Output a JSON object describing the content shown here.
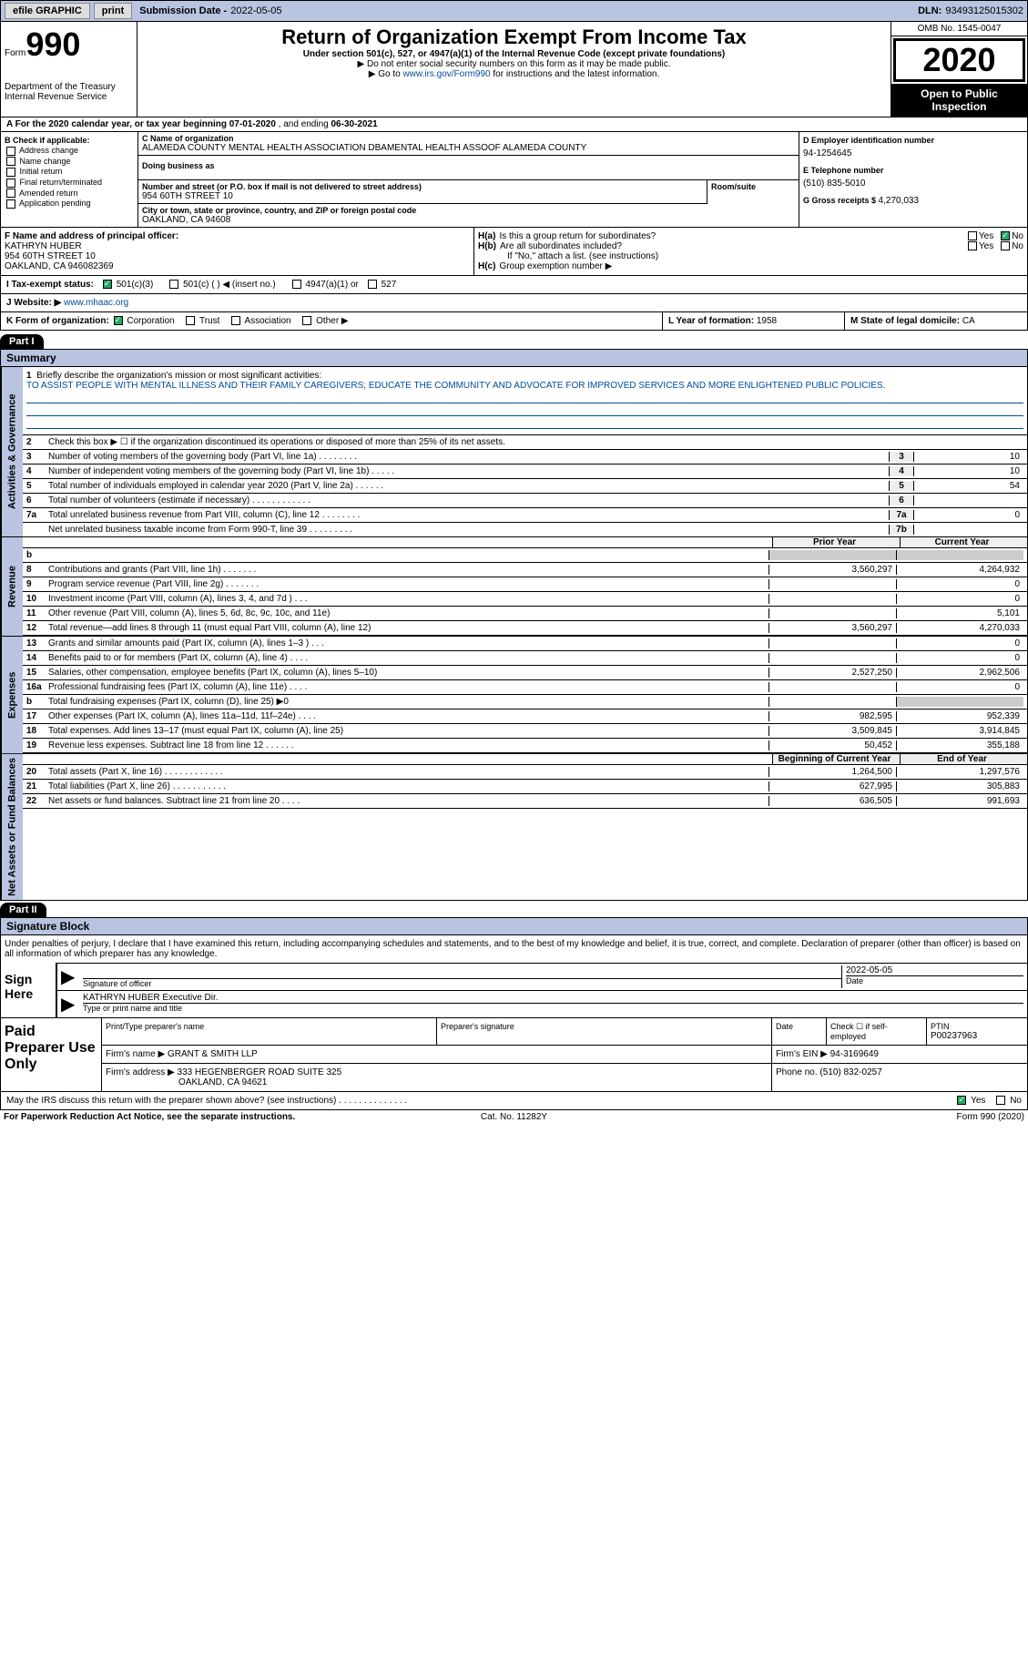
{
  "topbar": {
    "efile_label": "efile GRAPHIC",
    "print_label": "print",
    "sub_date_label": "Submission Date - ",
    "sub_date": "2022-05-05",
    "dln_label": "DLN: ",
    "dln": "93493125015302"
  },
  "header": {
    "form_word": "Form",
    "form_num": "990",
    "dept": "Department of the Treasury\nInternal Revenue Service",
    "title": "Return of Organization Exempt From Income Tax",
    "subtitle": "Under section 501(c), 527, or 4947(a)(1) of the Internal Revenue Code (except private foundations)",
    "note1": "▶ Do not enter social security numbers on this form as it may be made public.",
    "note2_pre": "▶ Go to ",
    "note2_link": "www.irs.gov/Form990",
    "note2_post": " for instructions and the latest information.",
    "omb": "OMB No. 1545-0047",
    "year": "2020",
    "open": "Open to Public Inspection"
  },
  "row_a": {
    "text_pre": "A  For the 2020 calendar year, or tax year beginning ",
    "begin": "07-01-2020",
    "mid": "   , and ending ",
    "end": "06-30-2021"
  },
  "section_b": {
    "hdr": "B Check if applicable:",
    "opts": [
      "Address change",
      "Name change",
      "Initial return",
      "Final return/terminated",
      "Amended return",
      "Application pending"
    ],
    "c_label": "C Name of organization",
    "org_name": "ALAMEDA COUNTY MENTAL HEALTH ASSOCIATION DBAMENTAL HEALTH ASSOOF ALAMEDA COUNTY",
    "dba_label": "Doing business as",
    "addr_label": "Number and street (or P.O. box if mail is not delivered to street address)",
    "addr": "954 60TH STREET 10",
    "room_label": "Room/suite",
    "city_label": "City or town, state or province, country, and ZIP or foreign postal code",
    "city": "OAKLAND, CA  94608",
    "d_label": "D Employer identification number",
    "ein": "94-1254645",
    "e_label": "E Telephone number",
    "phone": "(510) 835-5010",
    "g_label": "G Gross receipts $ ",
    "gross": "4,270,033"
  },
  "section_f": {
    "f_label": "F Name and address of principal officer:",
    "name": "KATHRYN HUBER",
    "addr1": "954 60TH STREET 10",
    "addr2": "OAKLAND, CA  946082369",
    "ha_label": "H(a)",
    "ha_text": "Is this a group return for subordinates?",
    "ha_yes": "Yes",
    "ha_no": "No",
    "hb_label": "H(b)",
    "hb_text": "Are all subordinates included?",
    "hb_note": "If \"No,\" attach a list. (see instructions)",
    "hc_label": "H(c)",
    "hc_text": "Group exemption number ▶"
  },
  "row_i": {
    "label": "I   Tax-exempt status:",
    "opt1": "501(c)(3)",
    "opt2": "501(c) (   ) ◀ (insert no.)",
    "opt3": "4947(a)(1) or",
    "opt4": "527"
  },
  "row_j": {
    "label": "J   Website: ▶",
    "url": "www.mhaac.org"
  },
  "row_k": {
    "k_label": "K Form of organization:",
    "k_opt1": "Corporation",
    "k_opt2": "Trust",
    "k_opt3": "Association",
    "k_opt4": "Other ▶",
    "l_label": "L Year of formation: ",
    "l_val": "1958",
    "m_label": "M State of legal domicile: ",
    "m_val": "CA"
  },
  "part1": {
    "hdr": "Part I",
    "title": "Summary",
    "vtab1": "Activities & Governance",
    "q1_num": "1",
    "q1_text": "Briefly describe the organization's mission or most significant activities:",
    "q1_mission": "TO ASSIST PEOPLE WITH MENTAL ILLNESS AND THEIR FAMILY CAREGIVERS; EDUCATE THE COMMUNITY AND ADVOCATE FOR IMPROVED SERVICES AND MORE ENLIGHTENED PUBLIC POLICIES.",
    "q2_num": "2",
    "q2_text": "Check this box ▶ ☐  if the organization discontinued its operations or disposed of more than 25% of its net assets.",
    "rows_a": [
      {
        "n": "3",
        "t": "Number of voting members of the governing body (Part VI, line 1a)   .    .    .    .    .    .    .    .",
        "c": "3",
        "v": "10"
      },
      {
        "n": "4",
        "t": "Number of independent voting members of the governing body (Part VI, line 1b)   .    .    .    .    .",
        "c": "4",
        "v": "10"
      },
      {
        "n": "5",
        "t": "Total number of individuals employed in calendar year 2020 (Part V, line 2a)   .    .    .    .    .    .",
        "c": "5",
        "v": "54"
      },
      {
        "n": "6",
        "t": "Total number of volunteers (estimate if necessary)    .    .    .    .    .    .    .    .    .    .    .    .",
        "c": "6",
        "v": ""
      },
      {
        "n": "7a",
        "t": "Total unrelated business revenue from Part VIII, column (C), line 12   .    .    .    .    .    .    .    .",
        "c": "7a",
        "v": "0"
      },
      {
        "n": "",
        "t": "Net unrelated business taxable income from Form 990-T, line 39   .    .    .    .    .    .    .    .    .",
        "c": "7b",
        "v": ""
      }
    ],
    "vtab2": "Revenue",
    "col_prior": "Prior Year",
    "col_current": "Current Year",
    "rows_r": [
      {
        "n": "b",
        "t": "",
        "p": "",
        "c": "",
        "grey": true
      },
      {
        "n": "8",
        "t": "Contributions and grants (Part VIII, line 1h)   .    .    .    .    .    .    .",
        "p": "3,560,297",
        "c": "4,264,932"
      },
      {
        "n": "9",
        "t": "Program service revenue (Part VIII, line 2g)   .    .    .    .    .    .    .",
        "p": "",
        "c": "0"
      },
      {
        "n": "10",
        "t": "Investment income (Part VIII, column (A), lines 3, 4, and 7d )   .    .    .",
        "p": "",
        "c": "0"
      },
      {
        "n": "11",
        "t": "Other revenue (Part VIII, column (A), lines 5, 6d, 8c, 9c, 10c, and 11e)",
        "p": "",
        "c": "5,101"
      },
      {
        "n": "12",
        "t": "Total revenue—add lines 8 through 11 (must equal Part VIII, column (A), line 12)",
        "p": "3,560,297",
        "c": "4,270,033"
      }
    ],
    "vtab3": "Expenses",
    "rows_e": [
      {
        "n": "13",
        "t": "Grants and similar amounts paid (Part IX, column (A), lines 1–3 )   .    .    .",
        "p": "",
        "c": "0"
      },
      {
        "n": "14",
        "t": "Benefits paid to or for members (Part IX, column (A), line 4)   .    .    .    .",
        "p": "",
        "c": "0"
      },
      {
        "n": "15",
        "t": "Salaries, other compensation, employee benefits (Part IX, column (A), lines 5–10)",
        "p": "2,527,250",
        "c": "2,962,506"
      },
      {
        "n": "16a",
        "t": "Professional fundraising fees (Part IX, column (A), line 11e)   .    .    .    .",
        "p": "",
        "c": "0"
      },
      {
        "n": "b",
        "t": "Total fundraising expenses (Part IX, column (D), line 25) ▶0",
        "p": "",
        "c": "",
        "greyc": true
      },
      {
        "n": "17",
        "t": "Other expenses (Part IX, column (A), lines 11a–11d, 11f–24e)   .    .    .    .",
        "p": "982,595",
        "c": "952,339"
      },
      {
        "n": "18",
        "t": "Total expenses. Add lines 13–17 (must equal Part IX, column (A), line 25)",
        "p": "3,509,845",
        "c": "3,914,845"
      },
      {
        "n": "19",
        "t": "Revenue less expenses. Subtract line 18 from line 12   .    .    .    .    .    .",
        "p": "50,452",
        "c": "355,188"
      }
    ],
    "vtab4": "Net Assets or Fund Balances",
    "col_begin": "Beginning of Current Year",
    "col_end": "End of Year",
    "rows_n": [
      {
        "n": "20",
        "t": "Total assets (Part X, line 16)   .    .    .    .    .    .    .    .    .    .    .    .",
        "p": "1,264,500",
        "c": "1,297,576"
      },
      {
        "n": "21",
        "t": "Total liabilities (Part X, line 26)   .    .    .    .    .    .    .    .    .    .    .",
        "p": "627,995",
        "c": "305,883"
      },
      {
        "n": "22",
        "t": "Net assets or fund balances. Subtract line 21 from line 20   .    .    .    .",
        "p": "636,505",
        "c": "991,693"
      }
    ]
  },
  "part2": {
    "hdr": "Part II",
    "title": "Signature Block",
    "decl": "Under penalties of perjury, I declare that I have examined this return, including accompanying schedules and statements, and to the best of my knowledge and belief, it is true, correct, and complete. Declaration of preparer (other than officer) is based on all information of which preparer has any knowledge.",
    "sign_here": "Sign Here",
    "sig_officer": "Signature of officer",
    "sig_date_label": "Date",
    "sig_date": "2022-05-05",
    "name_title": "KATHRYN HUBER  Executive Dir.",
    "type_name": "Type or print name and title",
    "paid": "Paid Preparer Use Only",
    "p_name_label": "Print/Type preparer's name",
    "p_sig_label": "Preparer's signature",
    "p_date_label": "Date",
    "p_check_label": "Check ☐  if self-employed",
    "ptin_label": "PTIN",
    "ptin": "P00237963",
    "firm_name_label": "Firm's name   ▶ ",
    "firm_name": "GRANT & SMITH LLP",
    "firm_ein_label": "Firm's EIN ▶ ",
    "firm_ein": "94-3169649",
    "firm_addr_label": "Firm's address ▶ ",
    "firm_addr1": "333 HEGENBERGER ROAD SUITE 325",
    "firm_addr2": "OAKLAND, CA  94621",
    "firm_phone_label": "Phone no. ",
    "firm_phone": "(510) 832-0257",
    "discuss": "May the IRS discuss this return with the preparer shown above? (see instructions)   .    .    .    .    .    .    .    .    .    .    .    .    .    .",
    "discuss_yes": "Yes",
    "discuss_no": "No"
  },
  "footer": {
    "left": "For Paperwork Reduction Act Notice, see the separate instructions.",
    "mid": "Cat. No. 11282Y",
    "right": "Form 990 (2020)"
  },
  "colors": {
    "header_bg": "#b8c4e0",
    "link": "#004b9b",
    "green_check": "#2a6"
  }
}
